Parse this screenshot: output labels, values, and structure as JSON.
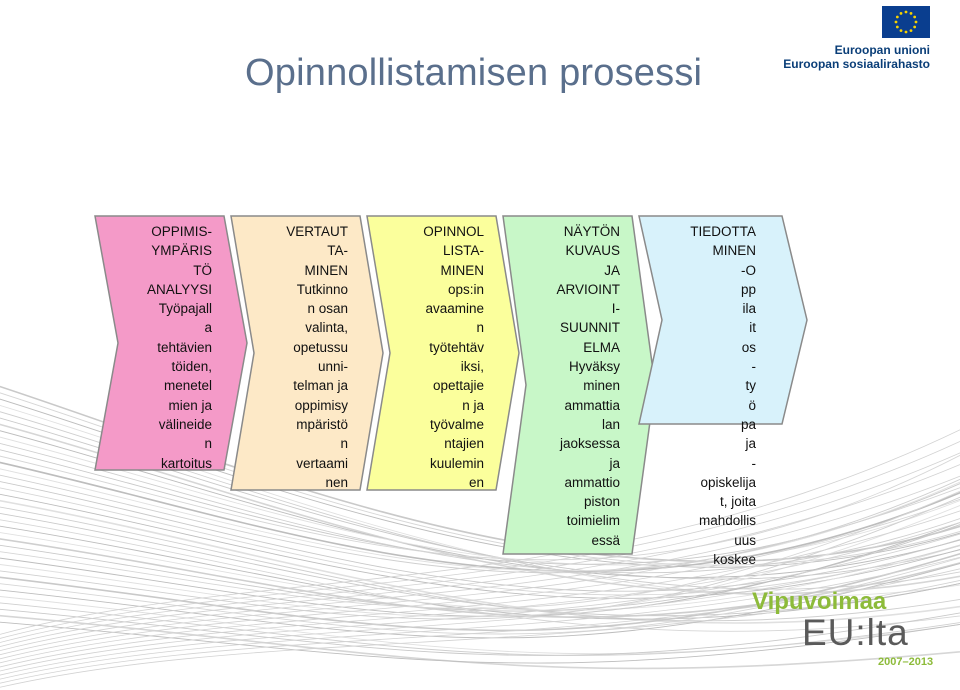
{
  "title": "Opinnollistamisen prosessi",
  "eu_logo": {
    "line1": "Euroopan unioni",
    "line2": "Euroopan sosiaalirahasto",
    "flag_color": "#0a3e8f",
    "star_color": "#f6d200"
  },
  "steps": [
    {
      "color": "#f49ac8",
      "text": "OPPIMIS-\nYMPÄRIS\nTÖ\nANALYYSI\nTyöpajall\na\ntehtävien\ntöiden,\nmenetel\nmien ja\nvälineide\nn\nkartoitus"
    },
    {
      "color": "#fde9c7",
      "text": "VERTAUT\nTA-\nMINEN\nTutkinno\nn osan\nvalinta,\nopetussu\nunni-\ntelman ja\noppimisy\nmpäristö\nn\nvertaami\nnen"
    },
    {
      "color": "#fbff9c",
      "text": "OPINNOL\nLISTA-\nMINEN\nops:in\navaamine\nn\ntyötehtäv\niksi,\nopettajie\nn ja\ntyövalme\nntajien\nkuulemin\nen"
    },
    {
      "color": "#c8f7c8",
      "text": "NÄYTÖN\nKUVAUS\nJA\nARVIOINT\nI-\nSUUNNIT\nELMA\nHyväksy\nminen\nammattia\nlan\njaoksessa\nja\nammattio\npiston\ntoimielim\nessä"
    },
    {
      "color": "#d8f2fb",
      "text": "TIEDOTTA\nMINEN\n-O\npp\nila\nit\nos\n-\nty\nö\npa\nja\n-\nopiskelija\nt, joita\nmahdollis\nuus\nkoskee"
    }
  ],
  "brand": {
    "vipuvoimaa": "Vipuvoimaa",
    "eulta": "EU:lta",
    "years": "2007–2013"
  }
}
